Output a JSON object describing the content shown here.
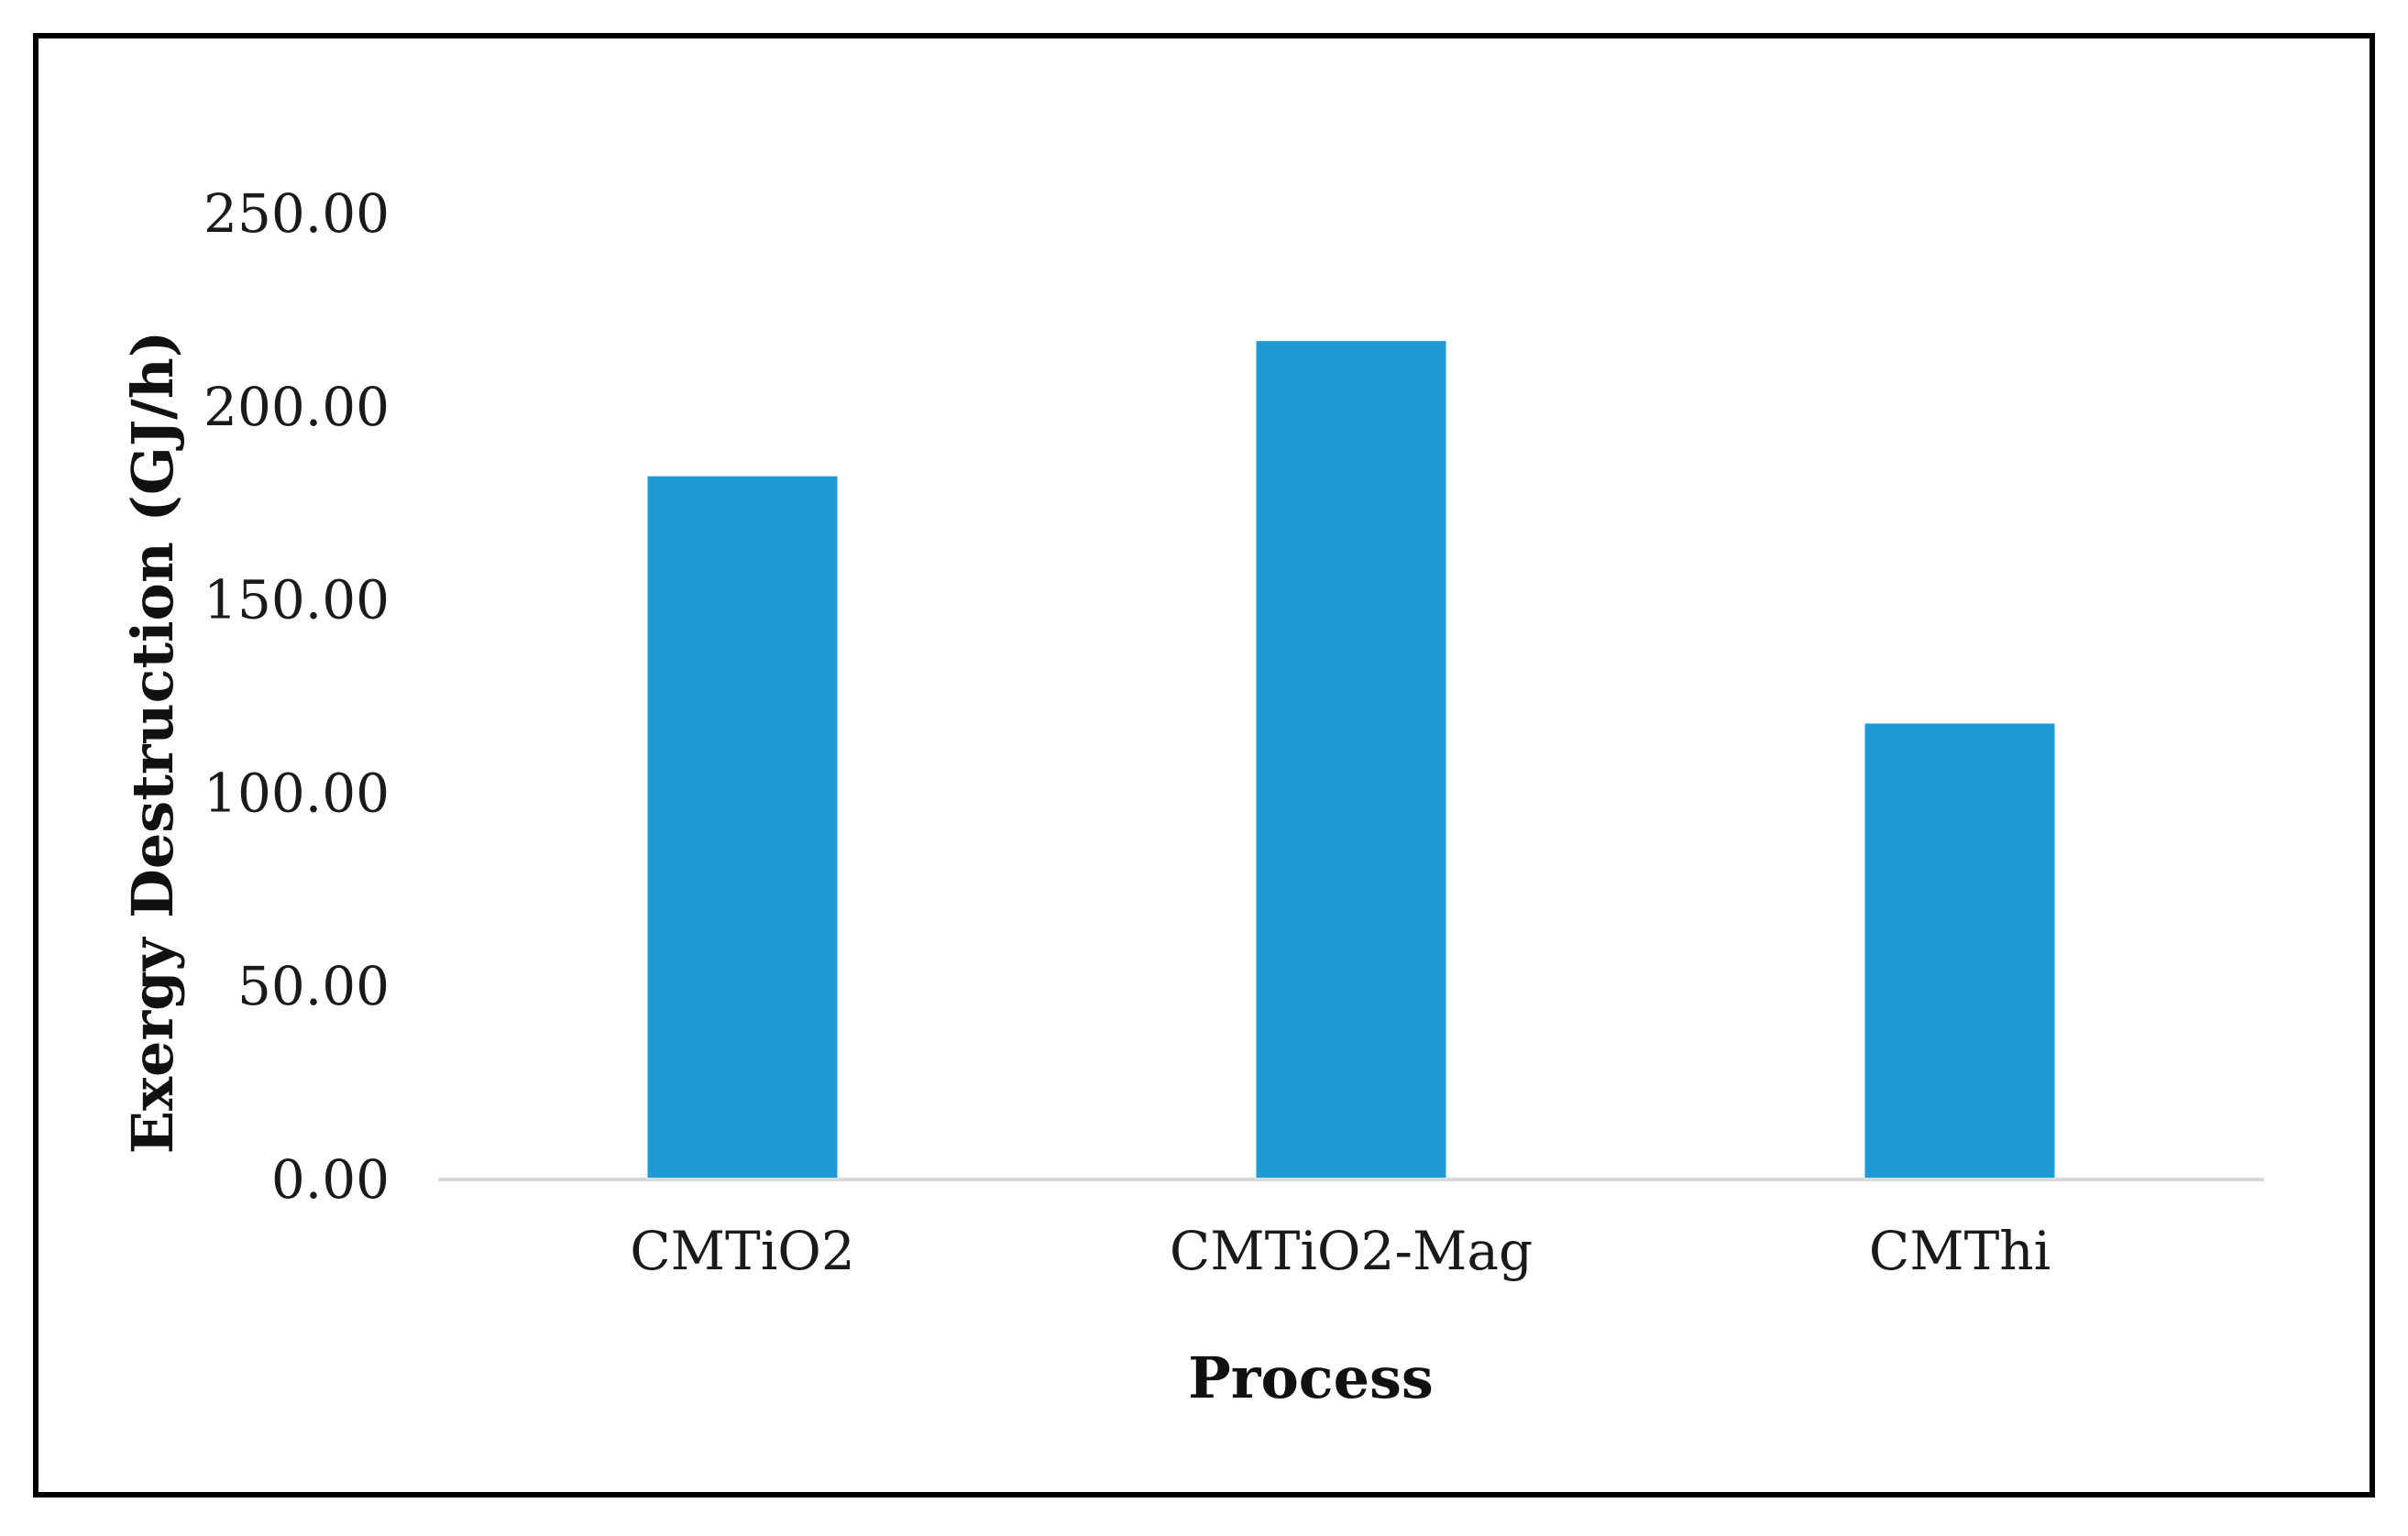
{
  "chart_data": {
    "type": "bar",
    "categories": [
      "CMTiO2",
      "CMTiO2-Mag",
      "CMThi"
    ],
    "values": [
      182,
      217,
      118
    ],
    "xlabel": "Process",
    "ylabel": "Exergy Destruction (GJ/h)",
    "ylim": [
      0,
      250
    ],
    "yticks": [
      "0.00",
      "50.00",
      "100.00",
      "150.00",
      "200.00",
      "250.00"
    ],
    "ytick_values": [
      0,
      50,
      100,
      150,
      200,
      250
    ],
    "grid": false,
    "legend": "none",
    "bar_color": "#1f9ad6",
    "axis_color": "#d9d9d9"
  }
}
